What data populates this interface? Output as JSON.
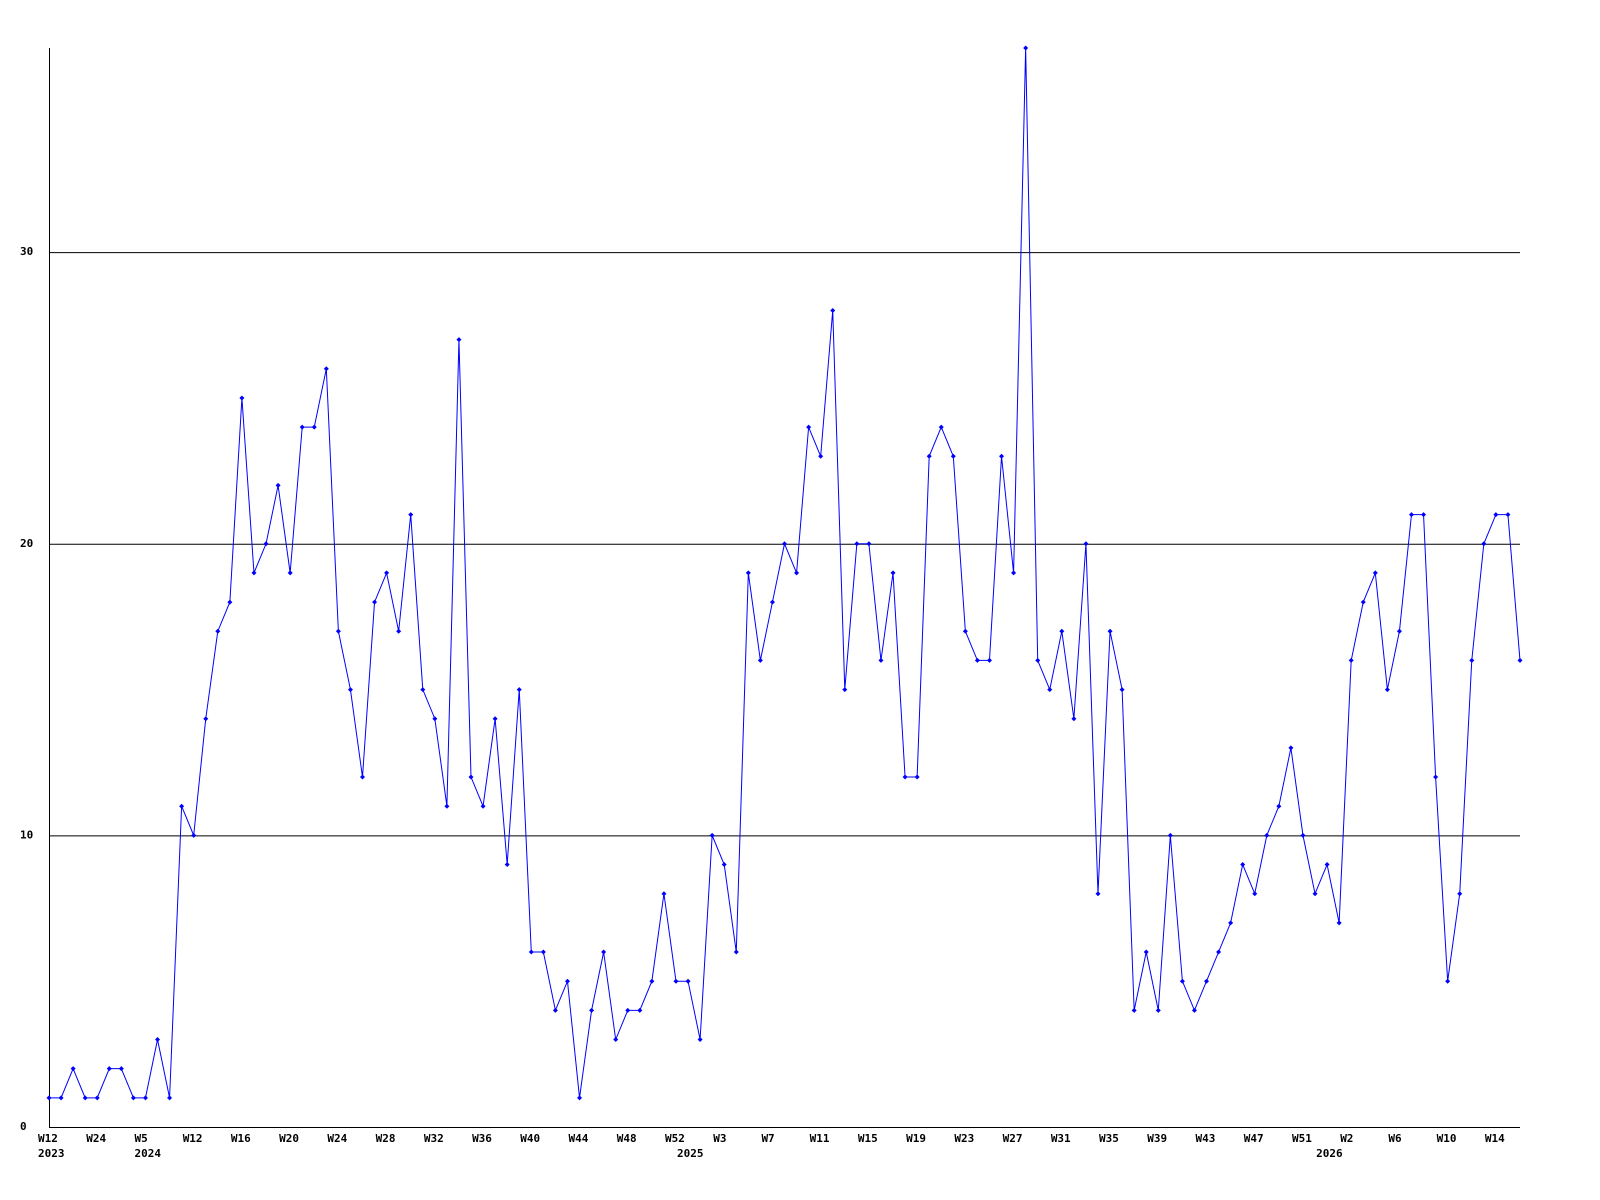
{
  "chart_data": {
    "type": "line",
    "categories": [
      "W12",
      null,
      null,
      null,
      "W24",
      null,
      null,
      null,
      "W5",
      null,
      null,
      null,
      "W12",
      null,
      null,
      null,
      "W16",
      null,
      null,
      null,
      "W20",
      null,
      null,
      null,
      "W24",
      null,
      null,
      null,
      "W28",
      null,
      null,
      null,
      "W32",
      null,
      null,
      null,
      "W36",
      null,
      null,
      null,
      "W40",
      null,
      null,
      null,
      "W44",
      null,
      null,
      null,
      "W48",
      null,
      null,
      null,
      "W52",
      null,
      null,
      null,
      "W3",
      null,
      null,
      null,
      "W7",
      null,
      null,
      null,
      "W11",
      null,
      null,
      null,
      "W15",
      null,
      null,
      null,
      "W19",
      null,
      null,
      null,
      "W23",
      null,
      null,
      null,
      "W27",
      null,
      null,
      null,
      "W31",
      null,
      null,
      null,
      "W35",
      null,
      null,
      null,
      "W39",
      null,
      null,
      null,
      "W43",
      null,
      null,
      null,
      "W47",
      null,
      null,
      null,
      "W51",
      null,
      null,
      null,
      "W2",
      null,
      null,
      null,
      "W6",
      null,
      null,
      null,
      "W10",
      null,
      null,
      null,
      "W14",
      null,
      null
    ],
    "years": [
      "2023",
      null,
      null,
      null,
      null,
      null,
      null,
      null,
      "2024",
      null,
      null,
      null,
      null,
      null,
      null,
      null,
      null,
      null,
      null,
      null,
      null,
      null,
      null,
      null,
      null,
      null,
      null,
      null,
      null,
      null,
      null,
      null,
      null,
      null,
      null,
      null,
      null,
      null,
      null,
      null,
      null,
      null,
      null,
      null,
      null,
      null,
      null,
      null,
      null,
      null,
      null,
      null,
      null,
      "2025",
      null,
      null,
      null,
      null,
      null,
      null,
      null,
      null,
      null,
      null,
      null,
      null,
      null,
      null,
      null,
      null,
      null,
      null,
      null,
      null,
      null,
      null,
      null,
      null,
      null,
      null,
      null,
      null,
      null,
      null,
      null,
      null,
      null,
      null,
      null,
      null,
      null,
      null,
      null,
      null,
      null,
      null,
      null,
      null,
      null,
      null,
      null,
      null,
      null,
      null,
      null,
      null,
      "2026",
      null,
      null,
      null,
      null,
      null,
      null,
      null,
      null,
      null,
      null,
      null,
      null,
      null,
      null,
      null,
      null
    ],
    "series": [
      {
        "color": "#0000ff",
        "values": [
          1,
          1,
          2,
          1,
          1,
          2,
          2,
          1,
          1,
          3,
          1,
          11,
          10,
          14,
          17,
          18,
          25,
          19,
          20,
          22,
          19,
          24,
          24,
          26,
          17,
          15,
          12,
          18,
          19,
          17,
          21,
          15,
          14,
          11,
          27,
          12,
          11,
          14,
          9,
          15,
          6,
          6,
          4,
          5,
          1,
          4,
          6,
          3,
          4,
          4,
          5,
          8,
          5,
          5,
          3,
          10,
          9,
          6,
          19,
          16,
          18,
          20,
          19,
          24,
          23,
          28,
          15,
          20,
          20,
          16,
          19,
          12,
          12,
          23,
          24,
          23,
          17,
          16,
          16,
          23,
          19,
          37,
          16,
          15,
          17,
          14,
          20,
          8,
          17,
          15,
          4,
          6,
          4,
          10,
          5,
          4,
          5,
          6,
          7,
          9,
          8,
          10,
          11,
          13,
          10,
          8,
          9,
          7,
          16,
          18,
          19,
          15,
          17,
          21,
          21,
          12,
          5,
          8,
          16,
          20,
          21,
          21,
          16
        ]
      }
    ],
    "ylim": [
      0,
      37
    ],
    "yticks": [
      0,
      10,
      20,
      30
    ],
    "grid": true
  }
}
